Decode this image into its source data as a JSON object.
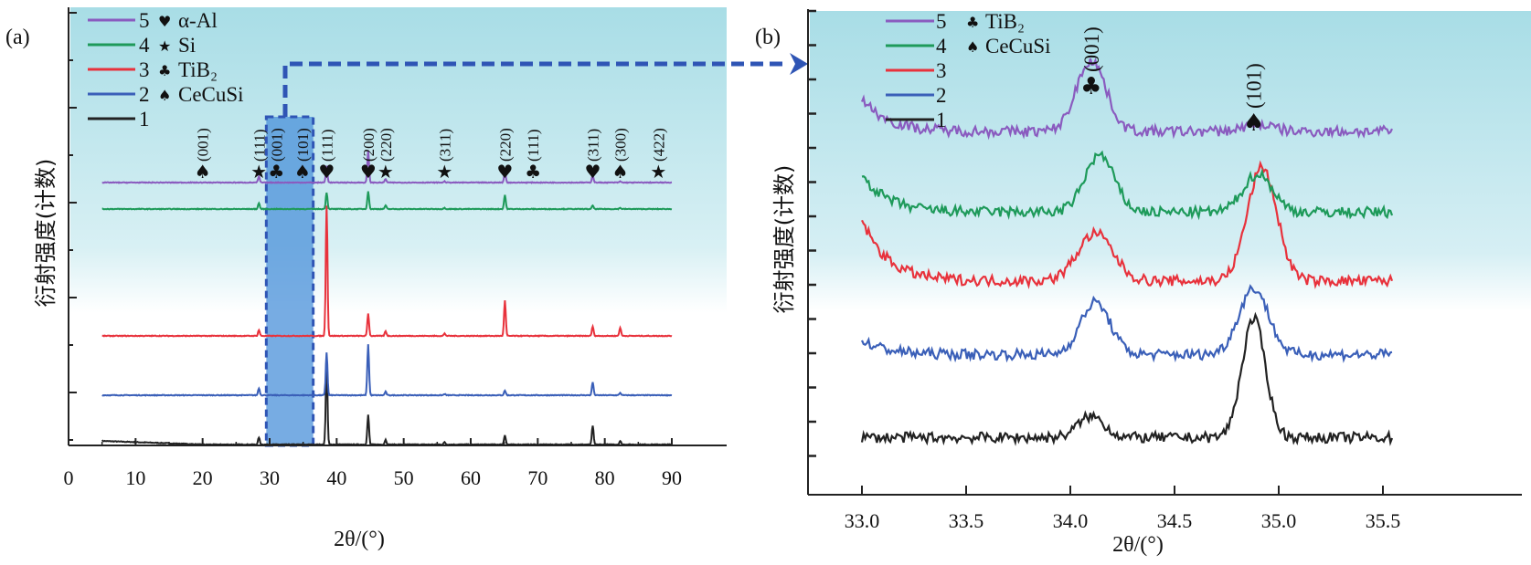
{
  "figure": {
    "arrow_note": "dashed arrow from highlighted region in (a) to panel (b)"
  },
  "chart_data": [
    {
      "type": "line",
      "panel_label": "(a)",
      "title": "",
      "xlabel": "2θ/(°)",
      "ylabel": "衍射强度(计数)",
      "xlim": [
        0,
        95
      ],
      "xticks": [
        0,
        10,
        20,
        30,
        40,
        50,
        60,
        70,
        80,
        90
      ],
      "x_range_data": [
        5,
        90
      ],
      "grid": false,
      "legend_position": "top-left",
      "legend": [
        {
          "curve": "5",
          "symbol": "heart",
          "phase": "α-Al",
          "color": "#8a5bbf"
        },
        {
          "curve": "4",
          "symbol": "star",
          "phase": "Si",
          "color": "#1e9a5a"
        },
        {
          "curve": "3",
          "symbol": "club",
          "phase": "TiB₂",
          "color": "#e8323c"
        },
        {
          "curve": "2",
          "symbol": "spade",
          "phase": "CeCuSi",
          "color": "#3a5fb8"
        },
        {
          "curve": "1",
          "symbol": "",
          "phase": "",
          "color": "#222222"
        }
      ],
      "highlight_region": [
        29.5,
        36.5
      ],
      "peak_annotations": [
        {
          "x": 20.0,
          "hkl": "(001)",
          "symbol": "spade"
        },
        {
          "x": 28.4,
          "hkl": "(111)",
          "symbol": "star"
        },
        {
          "x": 31.0,
          "hkl": "(001)",
          "symbol": "club"
        },
        {
          "x": 34.9,
          "hkl": "(101)",
          "symbol": "spade"
        },
        {
          "x": 38.5,
          "hkl": "(111)",
          "symbol": "heart"
        },
        {
          "x": 44.7,
          "hkl": "(200)",
          "symbol": "heart"
        },
        {
          "x": 47.3,
          "hkl": "(220)",
          "symbol": "star"
        },
        {
          "x": 56.1,
          "hkl": "(311)",
          "symbol": "star"
        },
        {
          "x": 65.1,
          "hkl": "(220)",
          "symbol": "heart"
        },
        {
          "x": 69.3,
          "hkl": "(111)",
          "symbol": "club"
        },
        {
          "x": 78.2,
          "hkl": "(311)",
          "symbol": "heart"
        },
        {
          "x": 82.3,
          "hkl": "(300)",
          "symbol": "spade"
        },
        {
          "x": 88.0,
          "hkl": "(422)",
          "symbol": "star"
        }
      ],
      "series": [
        {
          "name": "1",
          "color": "#222222",
          "offset": 0,
          "peaks": [
            [
              28.4,
              0.6
            ],
            [
              38.5,
              7.0
            ],
            [
              44.7,
              2.5
            ],
            [
              47.3,
              0.4
            ],
            [
              56.1,
              0.2
            ],
            [
              65.1,
              0.8
            ],
            [
              78.2,
              1.6
            ],
            [
              82.3,
              0.3
            ]
          ]
        },
        {
          "name": "2",
          "color": "#3a5fb8",
          "offset": 1,
          "peaks": [
            [
              28.4,
              0.6
            ],
            [
              38.5,
              3.6
            ],
            [
              44.7,
              4.3
            ],
            [
              47.3,
              0.3
            ],
            [
              56.1,
              0.1
            ],
            [
              65.1,
              0.4
            ],
            [
              78.2,
              1.1
            ],
            [
              82.3,
              0.2
            ]
          ]
        },
        {
          "name": "3",
          "color": "#e8323c",
          "offset": 2,
          "peaks": [
            [
              28.4,
              0.5
            ],
            [
              38.5,
              11.0
            ],
            [
              44.7,
              1.9
            ],
            [
              47.3,
              0.4
            ],
            [
              56.1,
              0.2
            ],
            [
              65.1,
              3.0
            ],
            [
              78.2,
              0.8
            ],
            [
              82.3,
              0.7
            ]
          ]
        },
        {
          "name": "4",
          "color": "#1e9a5a",
          "offset": 3,
          "peaks": [
            [
              28.4,
              0.5
            ],
            [
              38.5,
              1.4
            ],
            [
              44.7,
              1.5
            ],
            [
              47.3,
              0.3
            ],
            [
              56.1,
              0.1
            ],
            [
              65.1,
              1.2
            ],
            [
              78.2,
              0.3
            ],
            [
              82.3,
              0.1
            ]
          ]
        },
        {
          "name": "5",
          "color": "#8a5bbf",
          "offset": 4,
          "peaks": [
            [
              28.4,
              0.5
            ],
            [
              38.5,
              1.4
            ],
            [
              44.7,
              2.7
            ],
            [
              47.3,
              0.3
            ],
            [
              56.1,
              0.1
            ],
            [
              65.1,
              0.9
            ],
            [
              78.2,
              0.6
            ],
            [
              82.3,
              0.1
            ]
          ]
        }
      ]
    },
    {
      "type": "line",
      "panel_label": "(b)",
      "title": "",
      "xlabel": "2θ/(°)",
      "ylabel": "衍射强度(计数)",
      "xlim": [
        32.75,
        35.65
      ],
      "xticks": [
        "33.0",
        "33.5",
        "34.0",
        "34.5",
        "35.0",
        "35.5"
      ],
      "x_range_data": [
        33.0,
        35.55
      ],
      "grid": false,
      "legend_position": "top-left",
      "legend": [
        {
          "curve": "5",
          "symbol": "club",
          "phase": "TiB₂",
          "color": "#8a5bbf"
        },
        {
          "curve": "4",
          "symbol": "spade",
          "phase": "CeCuSi",
          "color": "#1e9a5a"
        },
        {
          "curve": "3",
          "symbol": "",
          "phase": "",
          "color": "#e8323c"
        },
        {
          "curve": "2",
          "symbol": "",
          "phase": "",
          "color": "#3a5fb8"
        },
        {
          "curve": "1",
          "symbol": "",
          "phase": "",
          "color": "#222222"
        }
      ],
      "peak_annotations": [
        {
          "x": 34.1,
          "hkl": "(001)",
          "symbol": "club"
        },
        {
          "x": 34.88,
          "hkl": "(101)",
          "symbol": "spade"
        }
      ],
      "series": [
        {
          "name": "1",
          "color": "#222222",
          "baseline": 0.3,
          "start_rise": 0.0,
          "peaks": [
            [
              34.1,
              0.45,
              0.09
            ],
            [
              34.88,
              2.5,
              0.08
            ]
          ]
        },
        {
          "name": "2",
          "color": "#3a5fb8",
          "baseline": 2.05,
          "start_rise": 0.3,
          "peaks": [
            [
              34.12,
              1.1,
              0.1
            ],
            [
              34.88,
              1.4,
              0.1
            ]
          ]
        },
        {
          "name": "3",
          "color": "#e8323c",
          "baseline": 3.6,
          "start_rise": 1.3,
          "peaks": [
            [
              34.12,
              1.0,
              0.12
            ],
            [
              34.92,
              2.4,
              0.1
            ]
          ]
        },
        {
          "name": "4",
          "color": "#1e9a5a",
          "baseline": 5.05,
          "start_rise": 0.8,
          "peaks": [
            [
              34.14,
              1.2,
              0.1
            ],
            [
              34.9,
              0.8,
              0.1
            ]
          ]
        },
        {
          "name": "5",
          "color": "#8a5bbf",
          "baseline": 6.75,
          "start_rise": 0.7,
          "peaks": [
            [
              34.1,
              1.5,
              0.1
            ],
            [
              34.9,
              0.15,
              0.1
            ]
          ]
        }
      ]
    }
  ]
}
